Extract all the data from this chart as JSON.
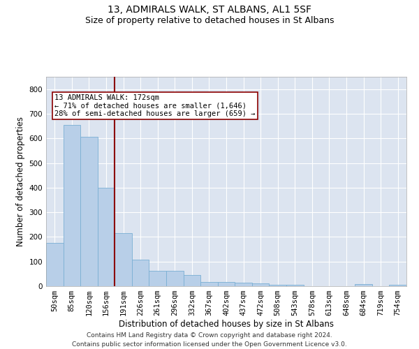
{
  "title": "13, ADMIRALS WALK, ST ALBANS, AL1 5SF",
  "subtitle": "Size of property relative to detached houses in St Albans",
  "xlabel": "Distribution of detached houses by size in St Albans",
  "ylabel": "Number of detached properties",
  "categories": [
    "50sqm",
    "85sqm",
    "120sqm",
    "156sqm",
    "191sqm",
    "226sqm",
    "261sqm",
    "296sqm",
    "332sqm",
    "367sqm",
    "402sqm",
    "437sqm",
    "472sqm",
    "508sqm",
    "543sqm",
    "578sqm",
    "613sqm",
    "648sqm",
    "684sqm",
    "719sqm",
    "754sqm"
  ],
  "values": [
    175,
    655,
    607,
    400,
    215,
    107,
    63,
    63,
    44,
    18,
    16,
    14,
    12,
    7,
    7,
    1,
    1,
    1,
    8,
    1,
    6
  ],
  "bar_color": "#b8cfe8",
  "bar_edge_color": "#7aafd4",
  "vline_color": "#8b0000",
  "annotation_text": "13 ADMIRALS WALK: 172sqm\n← 71% of detached houses are smaller (1,646)\n28% of semi-detached houses are larger (659) →",
  "annotation_box_color": "#ffffff",
  "annotation_box_edge": "#8b0000",
  "ylim": [
    0,
    850
  ],
  "yticks": [
    0,
    100,
    200,
    300,
    400,
    500,
    600,
    700,
    800
  ],
  "bg_color": "#dce4f0",
  "grid_color": "#ffffff",
  "footer": "Contains HM Land Registry data © Crown copyright and database right 2024.\nContains public sector information licensed under the Open Government Licence v3.0.",
  "title_fontsize": 10,
  "subtitle_fontsize": 9,
  "xlabel_fontsize": 8.5,
  "ylabel_fontsize": 8.5,
  "annotation_fontsize": 7.5,
  "footer_fontsize": 6.5,
  "tick_fontsize": 7.5
}
